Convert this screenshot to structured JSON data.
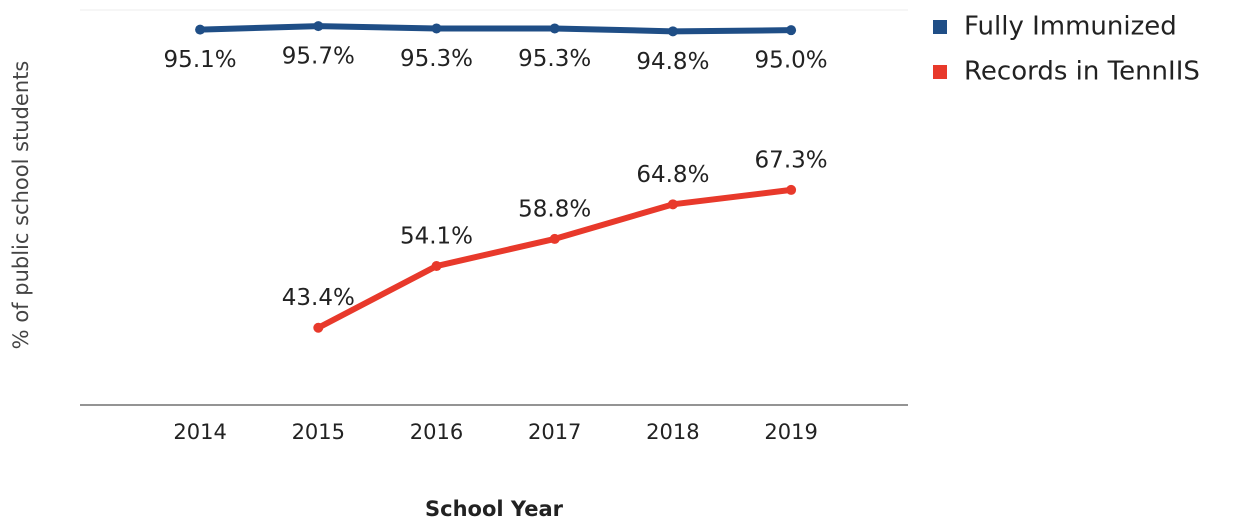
{
  "chart_data": {
    "type": "line",
    "x_label": "School Year",
    "y_label": "% of public school students",
    "categories": [
      "2014",
      "2015",
      "2016",
      "2017",
      "2018",
      "2019"
    ],
    "series": [
      {
        "name": "Fully Immunized",
        "color": "#1f4e86",
        "values": [
          95.1,
          95.7,
          95.3,
          95.3,
          94.8,
          95.0
        ],
        "value_labels": [
          "95.1%",
          "95.7%",
          "95.3%",
          "95.3%",
          "94.8%",
          "95.0%"
        ],
        "label_position": "below"
      },
      {
        "name": "Records in TennIIS",
        "color": "#e8392b",
        "values": [
          null,
          43.4,
          54.1,
          58.8,
          64.8,
          67.3
        ],
        "value_labels": [
          null,
          "43.4%",
          "54.1%",
          "58.8%",
          "64.8%",
          "67.3%"
        ],
        "label_position": "above"
      }
    ],
    "ylim": [
      30,
      98.5
    ],
    "legend": "top-right"
  }
}
